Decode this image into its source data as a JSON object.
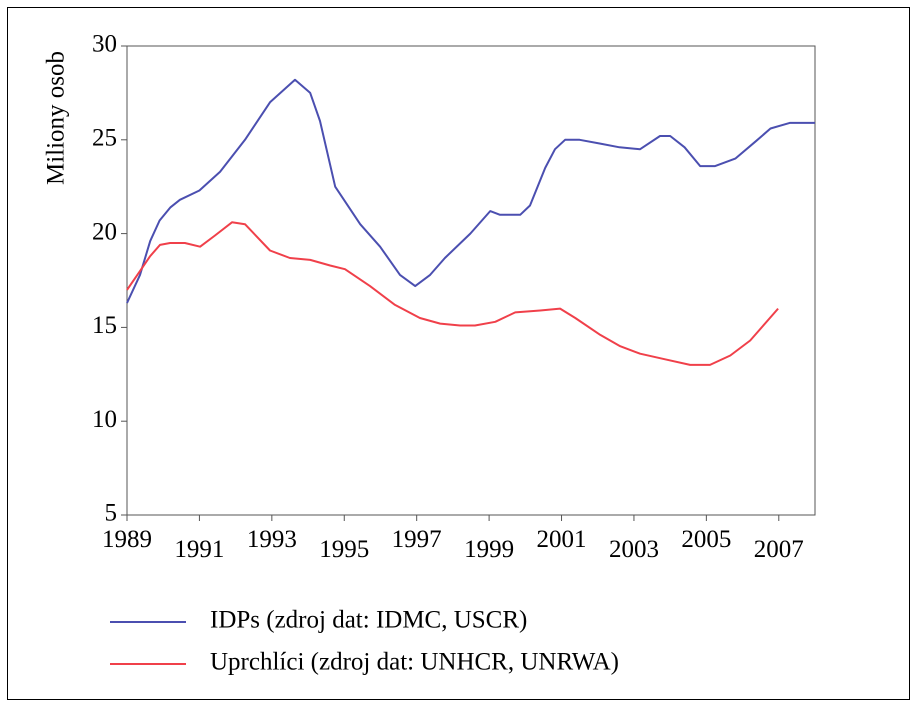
{
  "chart_data": {
    "type": "line",
    "ylabel": "Miliony osob",
    "xlim": [
      1989,
      2008
    ],
    "ylim": [
      5,
      30
    ],
    "xticks": [
      1989,
      1991,
      1993,
      1995,
      1997,
      1999,
      2001,
      2003,
      2005,
      2007
    ],
    "yticks": [
      5,
      10,
      15,
      20,
      25,
      30
    ],
    "series": [
      {
        "name": "IDPs (zdroj dat: IDMC, USCR)",
        "color": "#4b4fb0",
        "x": [
          1989,
          1989.36,
          1989.64,
          1989.9,
          1990.2,
          1990.46,
          1991.0,
          1991.57,
          1992.26,
          1992.95,
          1993.64,
          1994.06,
          1994.33,
          1994.75,
          1995.44,
          1995.99,
          1996.54,
          1996.96,
          1997.37,
          1997.78,
          1998.48,
          1999.03,
          1999.3,
          1999.86,
          2000.13,
          2000.55,
          2000.82,
          2001.1,
          2001.5,
          2002.07,
          2002.6,
          2003.17,
          2003.72,
          2004.0,
          2004.4,
          2004.83,
          2005.24,
          2005.8,
          2006.35,
          2006.77,
          2007.3,
          2008.0
        ],
        "values": [
          16.3,
          17.8,
          19.6,
          20.7,
          21.4,
          21.8,
          22.3,
          23.3,
          25,
          27,
          28.2,
          27.5,
          26,
          22.5,
          20.5,
          19.3,
          17.8,
          17.2,
          17.8,
          18.7,
          20,
          21.2,
          21,
          21,
          21.5,
          23.5,
          24.5,
          25,
          25,
          24.8,
          24.6,
          24.5,
          25.2,
          25.2,
          24.6,
          23.6,
          23.6,
          24,
          24.9,
          25.6,
          25.9,
          25.9
        ]
      },
      {
        "name": "Uprchlíci (zdroj dat: UNHCR, UNRWA)",
        "color": "#f0404a",
        "x": [
          1989,
          1989.36,
          1989.64,
          1989.91,
          1990.19,
          1990.6,
          1991.02,
          1991.43,
          1991.9,
          1992.26,
          1992.95,
          1993.5,
          1994.06,
          1994.61,
          1995.02,
          1995.71,
          1996.4,
          1997.09,
          1997.65,
          1998.2,
          1998.61,
          1999.17,
          1999.72,
          2000.41,
          2000.96,
          2001.38,
          2002.07,
          2002.62,
          2003.17,
          2003.86,
          2004.55,
          2005.1,
          2005.66,
          2006.21,
          2006.98
        ],
        "values": [
          17,
          18,
          18.8,
          19.4,
          19.5,
          19.5,
          19.3,
          19.9,
          20.6,
          20.5,
          19.1,
          18.7,
          18.6,
          18.3,
          18.1,
          17.2,
          16.2,
          15.5,
          15.2,
          15.1,
          15.1,
          15.3,
          15.8,
          15.9,
          16,
          15.5,
          14.6,
          14,
          13.6,
          13.3,
          13,
          13,
          13.5,
          14.3,
          16
        ]
      }
    ]
  }
}
